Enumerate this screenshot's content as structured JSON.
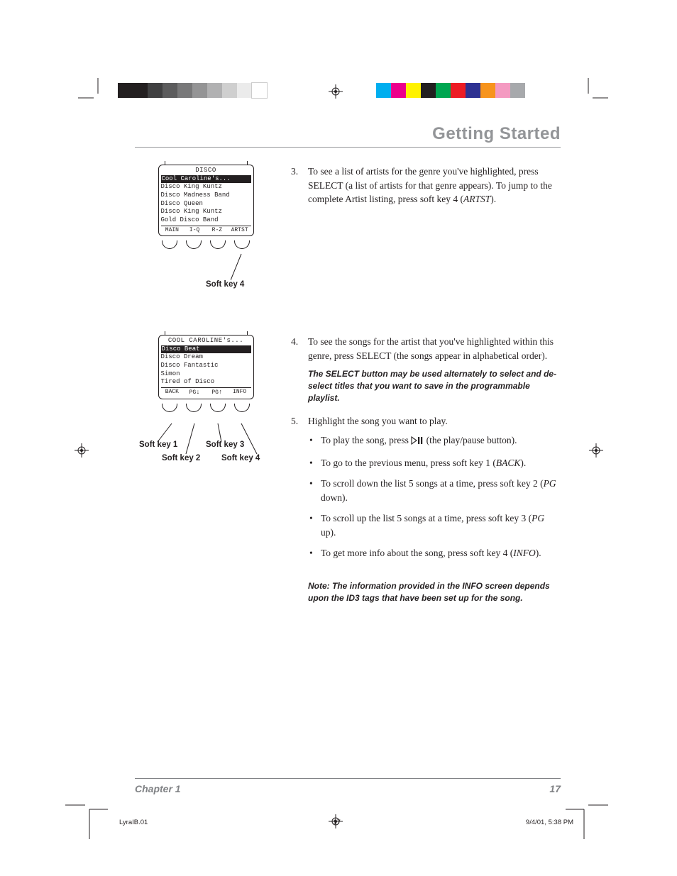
{
  "page": {
    "section_title": "Getting Started",
    "chapter_label": "Chapter 1",
    "page_number": "17",
    "imprint_doc": "LyraIB.01",
    "imprint_page": "17",
    "imprint_date": "9/4/01, 5:38 PM"
  },
  "colorbar_left": [
    "#231f20",
    "#231f20",
    "#404041",
    "#5c5c5d",
    "#787879",
    "#949495",
    "#b1b1b2",
    "#cfcfcf",
    "#ebebeb",
    "#ffffff"
  ],
  "colorbar_right": [
    "#00aeef",
    "#ec008c",
    "#fff200",
    "#231f20",
    "#00a651",
    "#ed1c24",
    "#2e3192",
    "#f7941d",
    "#f49ac1",
    "#a7a9ac"
  ],
  "screen1": {
    "title": "DISCO",
    "items": [
      "Cool Caroline's...",
      "Disco King Kuntz",
      "Disco Madness Band",
      "Disco Queen",
      "Disco King Kuntz",
      "Gold Disco Band"
    ],
    "highlighted_index": 0,
    "soft": [
      "MAIN",
      "I-Q",
      "R-Z",
      "ARTST"
    ],
    "callout": "Soft key 4"
  },
  "screen2": {
    "title": "COOL CAROLINE's...",
    "items": [
      "Disco Beat",
      "Disco Dream",
      "Disco Fantastic",
      "Simon",
      "Tired of Disco",
      ""
    ],
    "highlighted_index": 0,
    "soft": [
      "BACK",
      "PG↓",
      "PG↑",
      "INFO"
    ],
    "callouts": {
      "k1": "Soft key 1",
      "k2": "Soft key 2",
      "k3": "Soft key 3",
      "k4": "Soft key 4"
    }
  },
  "steps": {
    "s3_num": "3.",
    "s3": "To see a list of artists for the genre you've highlighted, press SELECT (a list of artists for that genre appears). To jump to the complete Artist listing, press soft key 4 (",
    "s3_em": "ARTST",
    "s3_end": ").",
    "s4_num": "4.",
    "s4": "To see the songs for the artist that you've highlighted within this genre, press SELECT (the songs appear in alphabetical order).",
    "s4_note": "The SELECT button may be used alternately to select and de-select titles that you want to save in the programmable playlist.",
    "s5_num": "5.",
    "s5": "Highlight the song you want to play.",
    "b1a": "To play the song, press ",
    "b1b": " (the play/pause button).",
    "b2a": "To go to the previous menu, press soft key 1 (",
    "b2em": "BACK",
    "b2b": ").",
    "b3a": "To scroll down the list 5 songs at a time, press soft key 2 (",
    "b3em": "PG",
    "b3b": " down).",
    "b4a": "To scroll up the list 5 songs at a time, press soft key 3 (",
    "b4em": "PG",
    "b4b": " up).",
    "b5a": "To get more info about the song, press soft key 4 (",
    "b5em": "INFO",
    "b5b": ").",
    "note2": "Note: The information provided in the INFO screen depends upon the ID3 tags that have been set up for the song."
  }
}
